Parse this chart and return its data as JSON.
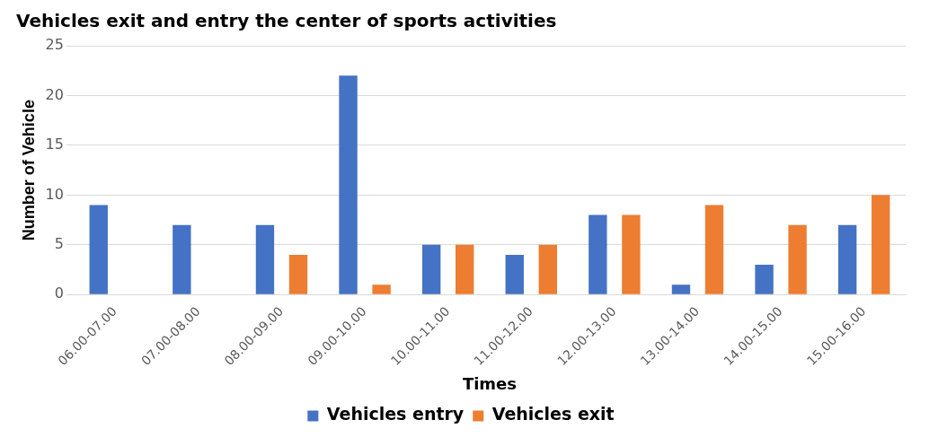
{
  "chart_data": {
    "type": "bar",
    "title": "Vehicles exit and entry the center of sports activities",
    "xlabel": "Times",
    "ylabel": "Number of Vehicle",
    "categories": [
      "06.00-07.00",
      "07.00-08.00",
      "08.00-09.00",
      "09.00-10.00",
      "10.00-11.00",
      "11.00-12.00",
      "12.00-13.00",
      "13.00-14.00",
      "14.00-15.00",
      "15.00-16.00"
    ],
    "series": [
      {
        "name": "Vehicles entry",
        "color": "#4472c4",
        "values": [
          9,
          7,
          7,
          22,
          5,
          4,
          8,
          1,
          3,
          7
        ]
      },
      {
        "name": "Vehicles exit",
        "color": "#ed7d31",
        "values": [
          null,
          null,
          4,
          1,
          5,
          5,
          8,
          9,
          7,
          10
        ]
      }
    ],
    "ylim": [
      0,
      25
    ],
    "yticks": [
      0,
      5,
      10,
      15,
      20,
      25
    ],
    "grid": "y",
    "legend": "bottom"
  }
}
